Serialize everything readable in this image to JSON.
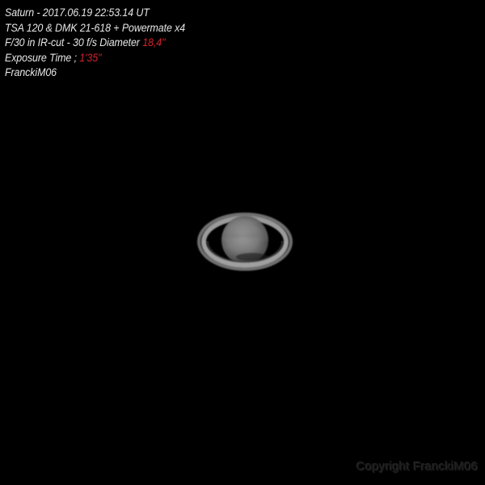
{
  "caption": {
    "line1": "Saturn - 2017.06.19  22:53.14 UT",
    "line2": "TSA 120 & DMK 21-618 + Powermate x4",
    "line3_prefix": "F/30 in IR-cut - 30 f/s Diameter ",
    "line3_value": "18,4''",
    "line4_prefix": "Exposure Time ; ",
    "line4_value": "1'35''",
    "line5": "FranckiM06"
  },
  "watermark": "Copyright FranckiM06",
  "colors": {
    "background": "#000000",
    "caption_text": "#e6e6e6",
    "caption_highlight": "#d2232a",
    "planet_body": "#7d7d7d",
    "ring": "#8e8e8e"
  }
}
